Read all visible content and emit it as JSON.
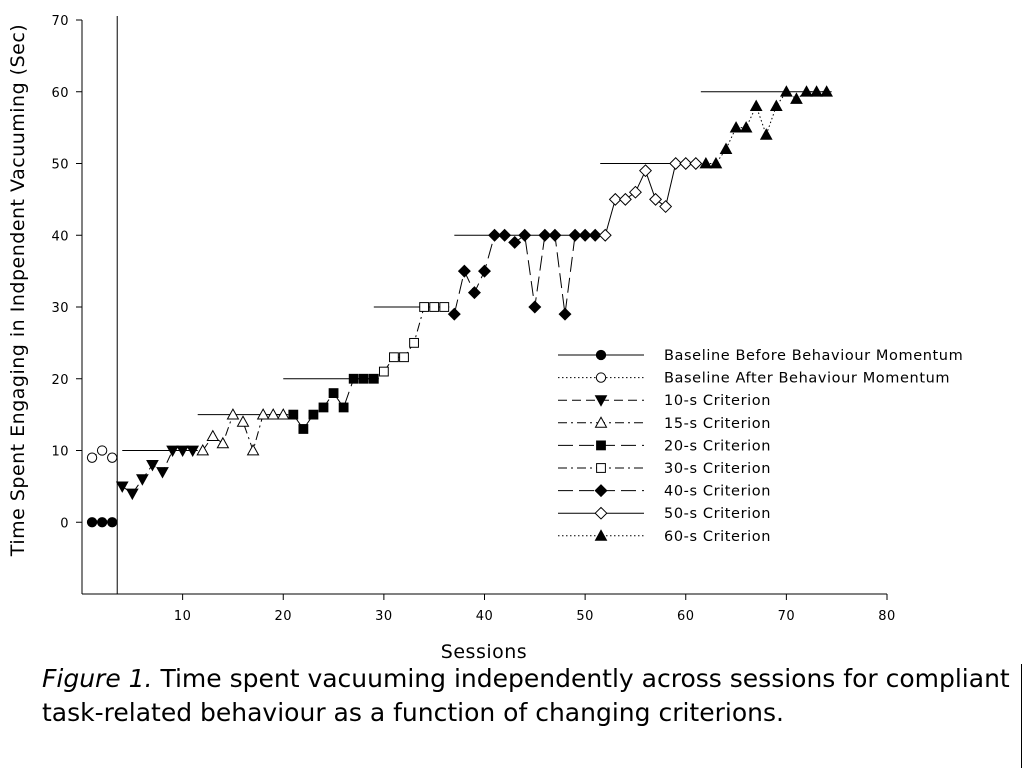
{
  "chart_data": {
    "type": "line",
    "xlabel": "Sessions",
    "ylabel": "Time Spent Engaging in Indpendent Vacuuming (Sec)",
    "xlim": [
      0,
      80
    ],
    "ylim": [
      -10,
      70
    ],
    "xticks": [
      10,
      20,
      30,
      40,
      50,
      60,
      70,
      80
    ],
    "yticks": [
      0,
      10,
      20,
      30,
      40,
      50,
      60,
      70
    ],
    "grid": false,
    "legend_position": "lower-right",
    "phase_change_line_x": 3.5,
    "criterion_lines": [
      {
        "y": 10,
        "x": [
          4,
          11.5
        ]
      },
      {
        "y": 15,
        "x": [
          11.5,
          20.5
        ]
      },
      {
        "y": 20,
        "x": [
          20,
          29.5
        ]
      },
      {
        "y": 30,
        "x": [
          29,
          36.5
        ]
      },
      {
        "y": 40,
        "x": [
          37,
          51.5
        ]
      },
      {
        "y": 50,
        "x": [
          51.5,
          61.5
        ]
      },
      {
        "y": 60,
        "x": [
          61.5,
          74.5
        ]
      }
    ],
    "series": [
      {
        "name": "Baseline Before Behaviour Momentum",
        "marker": "circle-filled",
        "line": "solid",
        "x": [
          1,
          2,
          3
        ],
        "y": [
          0,
          0,
          0
        ]
      },
      {
        "name": "Baseline After Behaviour Momentum",
        "marker": "circle-open",
        "line": "dotted",
        "x": [
          1,
          2,
          3
        ],
        "y": [
          9,
          10,
          9
        ]
      },
      {
        "name": "10-s Criterion",
        "marker": "triangle-down-filled",
        "line": "dashed",
        "x": [
          4,
          5,
          6,
          7,
          8,
          9,
          10,
          11
        ],
        "y": [
          5,
          4,
          6,
          8,
          7,
          10,
          10,
          10
        ]
      },
      {
        "name": "15-s Criterion",
        "marker": "triangle-up-open",
        "line": "dashdot",
        "x": [
          12,
          13,
          14,
          15,
          16,
          17,
          18,
          19,
          20
        ],
        "y": [
          10,
          12,
          11,
          15,
          14,
          10,
          15,
          15,
          15
        ]
      },
      {
        "name": "20-s Criterion",
        "marker": "square-filled",
        "line": "longdash",
        "x": [
          21,
          22,
          23,
          24,
          25,
          26,
          27,
          28,
          29
        ],
        "y": [
          15,
          13,
          15,
          16,
          18,
          16,
          20,
          20,
          20
        ]
      },
      {
        "name": "30-s Criterion",
        "marker": "square-open",
        "line": "dashdot",
        "x": [
          30,
          31,
          32,
          33,
          34,
          35,
          36
        ],
        "y": [
          21,
          23,
          23,
          25,
          30,
          30,
          30
        ]
      },
      {
        "name": "40-s Criterion",
        "marker": "diamond-filled",
        "line": "longdash",
        "x": [
          37,
          38,
          39,
          40,
          41,
          42,
          43,
          44,
          45,
          46,
          47,
          48,
          49,
          50,
          51
        ],
        "y": [
          29,
          35,
          32,
          35,
          40,
          40,
          39,
          40,
          30,
          40,
          40,
          29,
          40,
          40,
          40
        ]
      },
      {
        "name": "50-s Criterion",
        "marker": "diamond-open",
        "line": "solid",
        "x": [
          52,
          53,
          54,
          55,
          56,
          57,
          58,
          59,
          60,
          61
        ],
        "y": [
          40,
          45,
          45,
          46,
          49,
          45,
          44,
          50,
          50,
          50
        ]
      },
      {
        "name": "60-s Criterion",
        "marker": "triangle-up-filled",
        "line": "dotted",
        "x": [
          62,
          63,
          64,
          65,
          66,
          67,
          68,
          69,
          70,
          71,
          72,
          73,
          74
        ],
        "y": [
          50,
          50,
          52,
          55,
          55,
          58,
          54,
          58,
          60,
          59,
          60,
          60,
          60
        ]
      }
    ]
  },
  "caption": {
    "label": "Figure 1.",
    "text": " Time spent vacuuming independently across sessions for compliant task-related behaviour as a function of changing criterions."
  }
}
